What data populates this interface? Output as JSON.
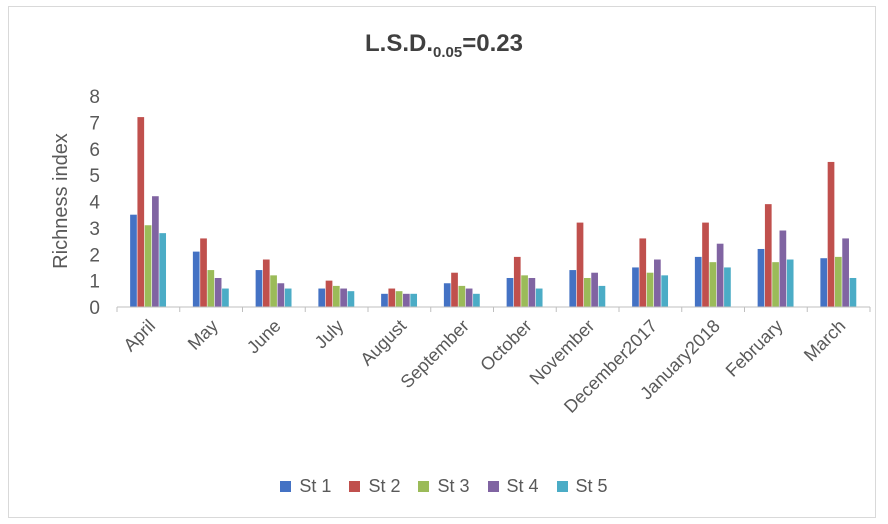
{
  "chart_data": {
    "type": "bar",
    "title_main": "L.S.D.",
    "title_sub": "0.05",
    "title_value": "=0.23",
    "ylabel": "Richness index",
    "xlabel": "",
    "ylim": [
      0,
      8
    ],
    "yticks": [
      "0",
      "1",
      "2",
      "3",
      "4",
      "5",
      "6",
      "7",
      "8"
    ],
    "grid": false,
    "legend_position": "bottom",
    "categories": [
      "April",
      "May",
      "June",
      "July",
      "August",
      "September",
      "October",
      "November",
      "December2017",
      "January2018",
      "February",
      "March"
    ],
    "series": [
      {
        "name": "St 1",
        "color": "#4472C4",
        "values": [
          3.5,
          2.1,
          1.4,
          0.7,
          0.5,
          0.9,
          1.1,
          1.4,
          1.5,
          1.9,
          2.2,
          1.85
        ]
      },
      {
        "name": "St 2",
        "color": "#C0504D",
        "values": [
          7.2,
          2.6,
          1.8,
          1.0,
          0.7,
          1.3,
          1.9,
          3.2,
          2.6,
          3.2,
          3.9,
          5.5
        ]
      },
      {
        "name": "St 3",
        "color": "#9BBB59",
        "values": [
          3.1,
          1.4,
          1.2,
          0.8,
          0.6,
          0.8,
          1.2,
          1.1,
          1.3,
          1.7,
          1.7,
          1.9
        ]
      },
      {
        "name": "St 4",
        "color": "#8064A2",
        "values": [
          4.2,
          1.1,
          0.9,
          0.7,
          0.5,
          0.7,
          1.1,
          1.3,
          1.8,
          2.4,
          2.9,
          2.6
        ]
      },
      {
        "name": "St 5",
        "color": "#4BACC6",
        "values": [
          2.8,
          0.7,
          0.7,
          0.6,
          0.5,
          0.5,
          0.7,
          0.8,
          1.2,
          1.5,
          1.8,
          1.1
        ]
      }
    ]
  }
}
